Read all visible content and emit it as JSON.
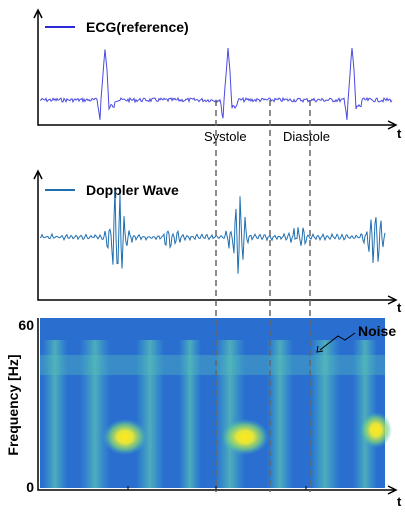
{
  "panels": [
    {
      "legend": "ECG(reference)",
      "axis_label": "t",
      "annotations": [
        "Systole",
        "Diastole"
      ]
    },
    {
      "legend": "Doppler Wave",
      "axis_label": "t"
    },
    {
      "y_label": "Frequency [Hz]",
      "y_ticks": [
        "60",
        "0"
      ],
      "axis_label": "t",
      "annotation": "Noise"
    }
  ]
}
